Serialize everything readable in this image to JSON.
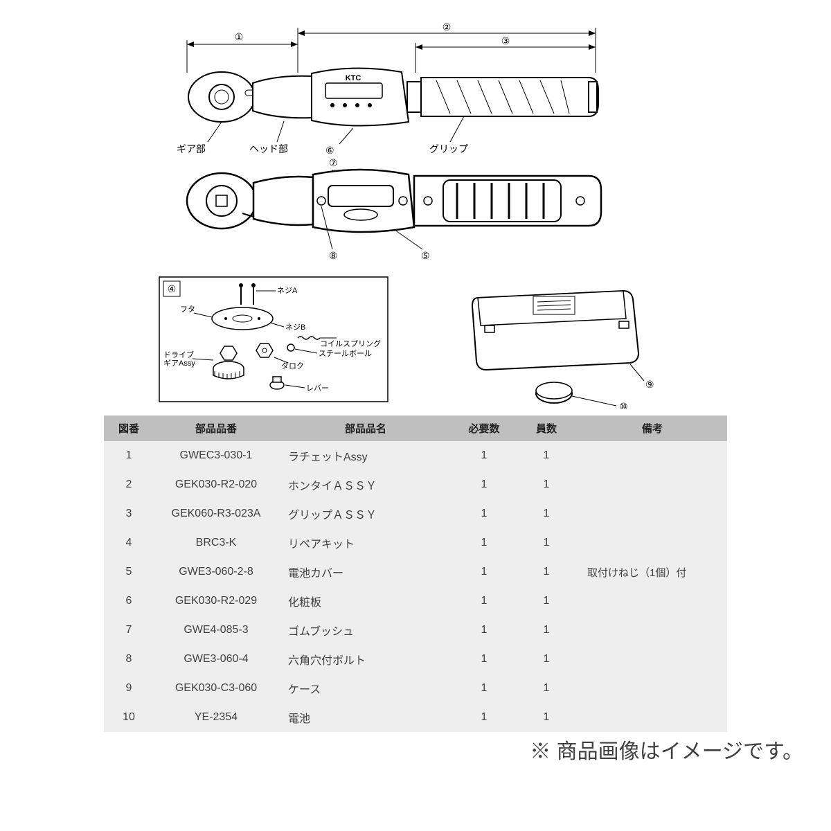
{
  "diagram": {
    "brand_label": "KTC",
    "callouts": {
      "n1": "①",
      "n2": "②",
      "n3": "③",
      "n4": "④",
      "n5": "⑤",
      "n6": "⑥",
      "n7": "⑦",
      "n8": "⑧",
      "n9": "⑨",
      "n10": "⑩"
    },
    "labels": {
      "gear_part": "ギア部",
      "head_part": "ヘッド部",
      "grip": "グリップ",
      "screw_a": "ネジA",
      "screw_b": "ネジB",
      "lid": "フタ",
      "coil_spring": "コイルスプリング",
      "steel_ball": "スチールボール",
      "drive_gear": "ドライブ\nギアAssy",
      "lever": "レバー",
      "dial": "ダロク"
    },
    "line_color": "#000000",
    "bg_color": "#ffffff"
  },
  "table": {
    "headers": [
      "図番",
      "部品品番",
      "部品品名",
      "必要数",
      "員数",
      "備考"
    ],
    "col_widths_pct": [
      8,
      20,
      28,
      10,
      10,
      24
    ],
    "header_bg": "#bfbfbf",
    "body_bg": "#eeeeee",
    "rows": [
      {
        "no": "1",
        "pn": "GWEC3-030-1",
        "name": "ラチェットAssy",
        "req": "1",
        "qty": "1",
        "note": ""
      },
      {
        "no": "2",
        "pn": "GEK030-R2-020",
        "name": "ホンタイＡＳＳＹ",
        "req": "1",
        "qty": "1",
        "note": ""
      },
      {
        "no": "3",
        "pn": "GEK060-R3-023A",
        "name": "グリップＡＳＳＹ",
        "req": "1",
        "qty": "1",
        "note": ""
      },
      {
        "no": "4",
        "pn": "BRC3-K",
        "name": "リペアキット",
        "req": "1",
        "qty": "1",
        "note": ""
      },
      {
        "no": "5",
        "pn": "GWE3-060-2-8",
        "name": "電池カバー",
        "req": "1",
        "qty": "1",
        "note": "取付けねじ（1個）付"
      },
      {
        "no": "6",
        "pn": "GEK030-R2-029",
        "name": "化粧板",
        "req": "1",
        "qty": "1",
        "note": ""
      },
      {
        "no": "7",
        "pn": "GWE4-085-3",
        "name": "ゴムブッシュ",
        "req": "1",
        "qty": "1",
        "note": ""
      },
      {
        "no": "8",
        "pn": "GWE3-060-4",
        "name": "六角穴付ボルト",
        "req": "1",
        "qty": "1",
        "note": ""
      },
      {
        "no": "9",
        "pn": "GEK030-C3-060",
        "name": "ケース",
        "req": "1",
        "qty": "1",
        "note": ""
      },
      {
        "no": "10",
        "pn": "YE-2354",
        "name": "電池",
        "req": "1",
        "qty": "1",
        "note": ""
      }
    ]
  },
  "footnote": "※ 商品画像はイメージです。"
}
